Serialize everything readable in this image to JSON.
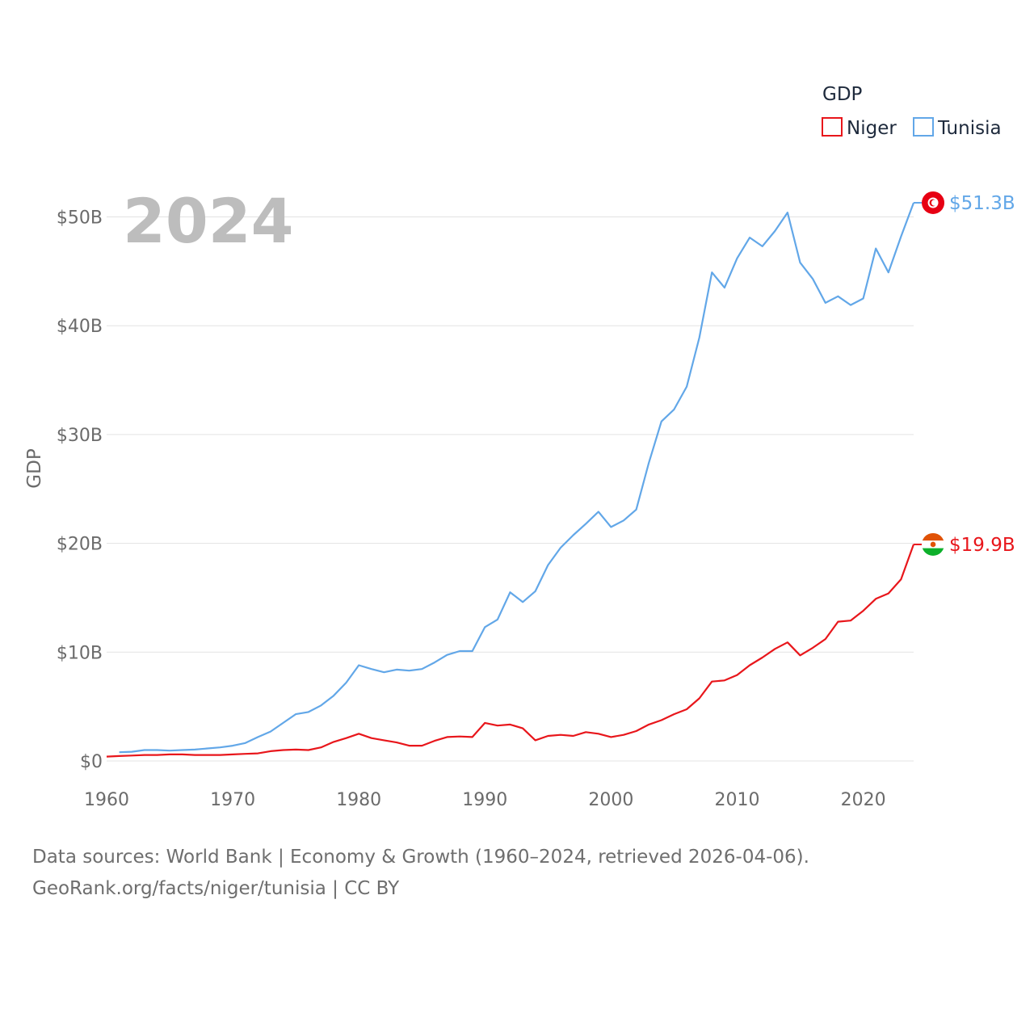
{
  "chart_data": {
    "type": "line",
    "year_label": "2024",
    "ylabel": "GDP",
    "legend_title": "GDP",
    "legend_position": "top-right",
    "ylim": [
      0,
      55
    ],
    "xlim": [
      1960,
      2024
    ],
    "y_ticks": [
      {
        "value": 0,
        "label": "$0"
      },
      {
        "value": 10,
        "label": "$10B"
      },
      {
        "value": 20,
        "label": "$20B"
      },
      {
        "value": 30,
        "label": "$30B"
      },
      {
        "value": 40,
        "label": "$40B"
      },
      {
        "value": 50,
        "label": "$50B"
      }
    ],
    "x_ticks": [
      {
        "value": 1960,
        "label": "1960"
      },
      {
        "value": 1970,
        "label": "1970"
      },
      {
        "value": 1980,
        "label": "1980"
      },
      {
        "value": 1990,
        "label": "1990"
      },
      {
        "value": 2000,
        "label": "2000"
      },
      {
        "value": 2010,
        "label": "2010"
      },
      {
        "value": 2020,
        "label": "2020"
      }
    ],
    "series": [
      {
        "name": "Niger",
        "color": "#e8161b",
        "end_label": "$19.9B",
        "flag": "niger",
        "x": [
          1960,
          1961,
          1962,
          1963,
          1964,
          1965,
          1966,
          1967,
          1968,
          1969,
          1970,
          1971,
          1972,
          1973,
          1974,
          1975,
          1976,
          1977,
          1978,
          1979,
          1980,
          1981,
          1982,
          1983,
          1984,
          1985,
          1986,
          1987,
          1988,
          1989,
          1990,
          1991,
          1992,
          1993,
          1994,
          1995,
          1996,
          1997,
          1998,
          1999,
          2000,
          2001,
          2002,
          2003,
          2004,
          2005,
          2006,
          2007,
          2008,
          2009,
          2010,
          2011,
          2012,
          2013,
          2014,
          2015,
          2016,
          2017,
          2018,
          2019,
          2020,
          2021,
          2022,
          2023,
          2024
        ],
        "values": [
          0.4,
          0.45,
          0.5,
          0.55,
          0.55,
          0.6,
          0.6,
          0.55,
          0.55,
          0.55,
          0.6,
          0.65,
          0.7,
          0.9,
          1.0,
          1.05,
          1.0,
          1.25,
          1.75,
          2.1,
          2.5,
          2.1,
          1.9,
          1.7,
          1.4,
          1.4,
          1.85,
          2.2,
          2.25,
          2.2,
          3.5,
          3.25,
          3.35,
          3.0,
          1.9,
          2.3,
          2.4,
          2.3,
          2.65,
          2.5,
          2.2,
          2.4,
          2.75,
          3.35,
          3.75,
          4.3,
          4.75,
          5.75,
          7.3,
          7.4,
          7.9,
          8.8,
          9.5,
          10.3,
          10.9,
          9.7,
          10.4,
          11.2,
          12.8,
          12.9,
          13.8,
          14.9,
          15.4,
          16.7,
          19.9
        ]
      },
      {
        "name": "Tunisia",
        "color": "#62a7e8",
        "end_label": "$51.3B",
        "flag": "tunisia",
        "x": [
          1961,
          1962,
          1963,
          1964,
          1965,
          1966,
          1967,
          1968,
          1969,
          1970,
          1971,
          1972,
          1973,
          1974,
          1975,
          1976,
          1977,
          1978,
          1979,
          1980,
          1981,
          1982,
          1983,
          1984,
          1985,
          1986,
          1987,
          1988,
          1989,
          1990,
          1991,
          1992,
          1993,
          1994,
          1995,
          1996,
          1997,
          1998,
          1999,
          2000,
          2001,
          2002,
          2003,
          2004,
          2005,
          2006,
          2007,
          2008,
          2009,
          2010,
          2011,
          2012,
          2013,
          2014,
          2015,
          2016,
          2017,
          2018,
          2019,
          2020,
          2021,
          2022,
          2023,
          2024
        ],
        "values": [
          0.8,
          0.85,
          1.0,
          1.0,
          0.95,
          1.0,
          1.05,
          1.15,
          1.25,
          1.4,
          1.65,
          2.2,
          2.7,
          3.5,
          4.3,
          4.5,
          5.1,
          6.0,
          7.2,
          8.8,
          8.45,
          8.15,
          8.4,
          8.3,
          8.45,
          9.05,
          9.75,
          10.1,
          10.1,
          12.3,
          13.0,
          15.5,
          14.6,
          15.6,
          18.0,
          19.6,
          20.75,
          21.8,
          22.9,
          21.5,
          22.1,
          23.1,
          27.4,
          31.2,
          32.3,
          34.4,
          38.9,
          44.9,
          43.5,
          46.2,
          48.1,
          47.3,
          48.7,
          50.4,
          45.8,
          44.3,
          42.1,
          42.7,
          41.9,
          42.5,
          47.1,
          44.9,
          48.2,
          51.3
        ]
      }
    ],
    "source_line1": "Data sources: World Bank | Economy & Growth (1960–2024, retrieved 2026-04-06).",
    "source_line2": "GeoRank.org/facts/niger/tunisia | CC BY"
  }
}
